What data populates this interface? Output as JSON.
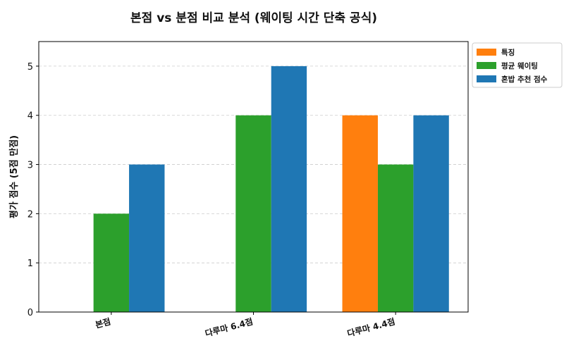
{
  "chart_data": {
    "type": "bar",
    "title": "본점 vs 분점 비교 분석 (웨이팅 시간 단축 공식)",
    "xlabel": "",
    "ylabel": "평가 점수 (5점 만점)",
    "categories": [
      "본점",
      "다루마 6.4점",
      "다루마 4.4점"
    ],
    "series": [
      {
        "name": "특징",
        "color": "#ff7f0e",
        "values": [
          null,
          null,
          4
        ]
      },
      {
        "name": "평균 웨이팅",
        "color": "#2ca02c",
        "values": [
          2,
          4,
          3
        ]
      },
      {
        "name": "혼밥 추천 점수",
        "color": "#1f77b4",
        "values": [
          3,
          5,
          4
        ]
      }
    ],
    "ylim": [
      0,
      5.5
    ],
    "yticks": [
      0,
      1,
      2,
      3,
      4,
      5
    ],
    "grid": "y, dashed",
    "legend": "outside top-right"
  }
}
